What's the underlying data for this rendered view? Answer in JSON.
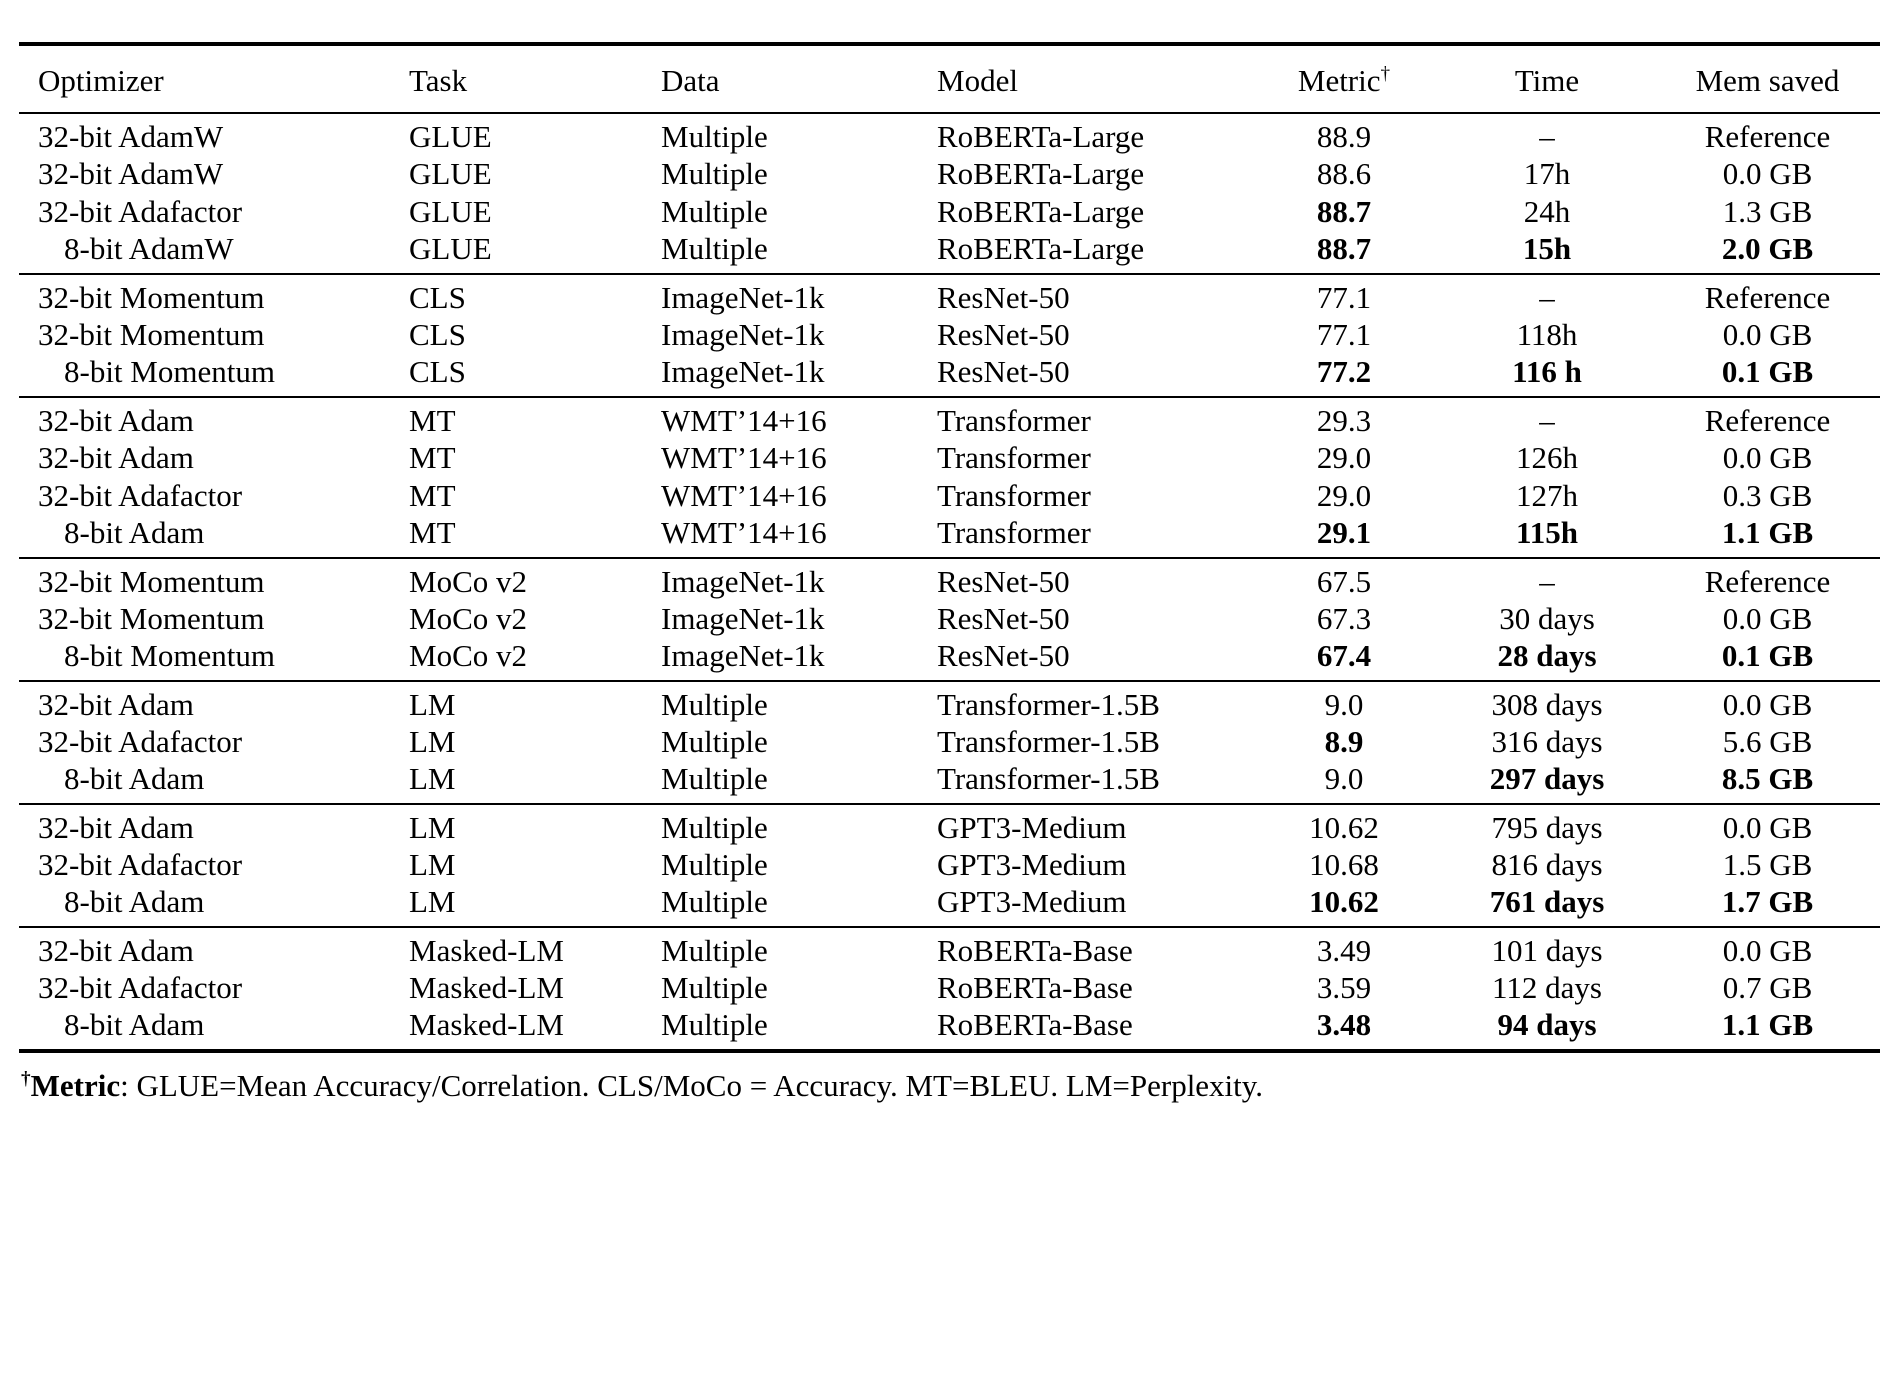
{
  "table": {
    "column_keys": [
      "optimizer",
      "task",
      "data",
      "model",
      "metric",
      "time",
      "mem"
    ],
    "columns": [
      {
        "label": "Optimizer"
      },
      {
        "label": "Task"
      },
      {
        "label": "Data"
      },
      {
        "label": "Model"
      },
      {
        "label": "Metric",
        "sup": "†"
      },
      {
        "label": "Time"
      },
      {
        "label": "Mem saved"
      }
    ],
    "groups": [
      {
        "rows": [
          {
            "optimizer": "32-bit AdamW",
            "task": "GLUE",
            "data": "Multiple",
            "model": "RoBERTa-Large",
            "metric": "88.9",
            "time": "–",
            "mem": "Reference",
            "bold": []
          },
          {
            "optimizer": "32-bit AdamW",
            "task": "GLUE",
            "data": "Multiple",
            "model": "RoBERTa-Large",
            "metric": "88.6",
            "time": "17h",
            "mem": "0.0 GB",
            "bold": []
          },
          {
            "optimizer": "32-bit Adafactor",
            "task": "GLUE",
            "data": "Multiple",
            "model": "RoBERTa-Large",
            "metric": "88.7",
            "time": "24h",
            "mem": "1.3 GB",
            "bold": [
              "metric"
            ]
          },
          {
            "optimizer": "8-bit AdamW",
            "task": "GLUE",
            "data": "Multiple",
            "model": "RoBERTa-Large",
            "metric": "88.7",
            "time": "15h",
            "mem": "2.0 GB",
            "bold": [
              "metric",
              "time",
              "mem"
            ]
          }
        ]
      },
      {
        "rows": [
          {
            "optimizer": "32-bit Momentum",
            "task": "CLS",
            "data": "ImageNet-1k",
            "model": "ResNet-50",
            "metric": "77.1",
            "time": "–",
            "mem": "Reference",
            "bold": []
          },
          {
            "optimizer": "32-bit Momentum",
            "task": "CLS",
            "data": "ImageNet-1k",
            "model": "ResNet-50",
            "metric": "77.1",
            "time": "118h",
            "mem": "0.0 GB",
            "bold": []
          },
          {
            "optimizer": "8-bit Momentum",
            "task": "CLS",
            "data": "ImageNet-1k",
            "model": "ResNet-50",
            "metric": "77.2",
            "time": "116 h",
            "mem": "0.1 GB",
            "bold": [
              "metric",
              "time",
              "mem"
            ]
          }
        ]
      },
      {
        "rows": [
          {
            "optimizer": "32-bit Adam",
            "task": "MT",
            "data": "WMT’14+16",
            "model": "Transformer",
            "metric": "29.3",
            "time": "–",
            "mem": "Reference",
            "bold": []
          },
          {
            "optimizer": "32-bit Adam",
            "task": "MT",
            "data": "WMT’14+16",
            "model": "Transformer",
            "metric": "29.0",
            "time": "126h",
            "mem": "0.0 GB",
            "bold": []
          },
          {
            "optimizer": "32-bit Adafactor",
            "task": "MT",
            "data": "WMT’14+16",
            "model": "Transformer",
            "metric": "29.0",
            "time": "127h",
            "mem": "0.3 GB",
            "bold": []
          },
          {
            "optimizer": "8-bit Adam",
            "task": "MT",
            "data": "WMT’14+16",
            "model": "Transformer",
            "metric": "29.1",
            "time": "115h",
            "mem": "1.1 GB",
            "bold": [
              "metric",
              "time",
              "mem"
            ]
          }
        ]
      },
      {
        "rows": [
          {
            "optimizer": "32-bit Momentum",
            "task": "MoCo v2",
            "data": "ImageNet-1k",
            "model": "ResNet-50",
            "metric": "67.5",
            "time": "–",
            "mem": "Reference",
            "bold": []
          },
          {
            "optimizer": "32-bit Momentum",
            "task": "MoCo v2",
            "data": "ImageNet-1k",
            "model": "ResNet-50",
            "metric": "67.3",
            "time": "30 days",
            "mem": "0.0 GB",
            "bold": []
          },
          {
            "optimizer": "8-bit Momentum",
            "task": "MoCo v2",
            "data": "ImageNet-1k",
            "model": "ResNet-50",
            "metric": "67.4",
            "time": "28 days",
            "mem": "0.1 GB",
            "bold": [
              "metric",
              "time",
              "mem"
            ]
          }
        ]
      },
      {
        "rows": [
          {
            "optimizer": "32-bit Adam",
            "task": "LM",
            "data": "Multiple",
            "model": "Transformer-1.5B",
            "metric": "9.0",
            "time": "308 days",
            "mem": "0.0 GB",
            "bold": []
          },
          {
            "optimizer": "32-bit Adafactor",
            "task": "LM",
            "data": "Multiple",
            "model": "Transformer-1.5B",
            "metric": "8.9",
            "time": "316 days",
            "mem": "5.6 GB",
            "bold": [
              "metric"
            ]
          },
          {
            "optimizer": "8-bit Adam",
            "task": "LM",
            "data": "Multiple",
            "model": "Transformer-1.5B",
            "metric": "9.0",
            "time": "297 days",
            "mem": "8.5 GB",
            "bold": [
              "time",
              "mem"
            ]
          }
        ]
      },
      {
        "rows": [
          {
            "optimizer": "32-bit Adam",
            "task": "LM",
            "data": "Multiple",
            "model": "GPT3-Medium",
            "metric": "10.62",
            "time": "795 days",
            "mem": "0.0 GB",
            "bold": []
          },
          {
            "optimizer": "32-bit Adafactor",
            "task": "LM",
            "data": "Multiple",
            "model": "GPT3-Medium",
            "metric": "10.68",
            "time": "816 days",
            "mem": "1.5 GB",
            "bold": []
          },
          {
            "optimizer": "8-bit Adam",
            "task": "LM",
            "data": "Multiple",
            "model": "GPT3-Medium",
            "metric": "10.62",
            "time": "761 days",
            "mem": "1.7 GB",
            "bold": [
              "metric",
              "time",
              "mem"
            ]
          }
        ]
      },
      {
        "rows": [
          {
            "optimizer": "32-bit Adam",
            "task": "Masked-LM",
            "data": "Multiple",
            "model": "RoBERTa-Base",
            "metric": "3.49",
            "time": "101 days",
            "mem": "0.0 GB",
            "bold": []
          },
          {
            "optimizer": "32-bit Adafactor",
            "task": "Masked-LM",
            "data": "Multiple",
            "model": "RoBERTa-Base",
            "metric": "3.59",
            "time": "112 days",
            "mem": "0.7 GB",
            "bold": []
          },
          {
            "optimizer": "8-bit Adam",
            "task": "Masked-LM",
            "data": "Multiple",
            "model": "RoBERTa-Base",
            "metric": "3.48",
            "time": "94 days",
            "mem": "1.1 GB",
            "bold": [
              "metric",
              "time",
              "mem"
            ]
          }
        ]
      }
    ]
  },
  "footnote": {
    "dagger": "†",
    "label": "Metric",
    "text": ": GLUE=Mean Accuracy/Correlation. CLS/MoCo = Accuracy. MT=BLEU. LM=Perplexity."
  }
}
